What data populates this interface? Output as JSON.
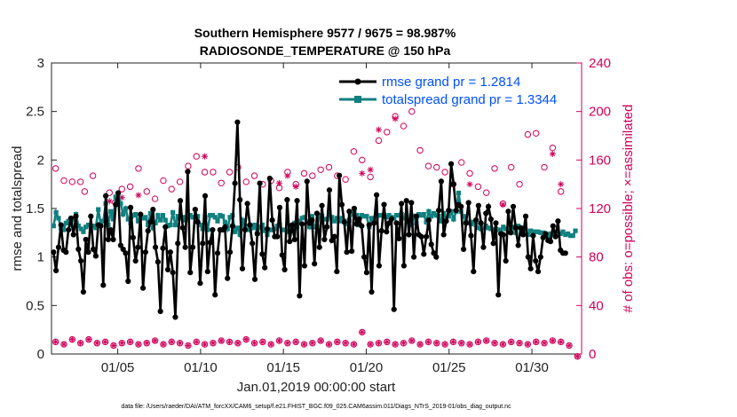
{
  "chart_data": {
    "type": "line",
    "title_line1": "Southern Hemisphere 9577 / 9675 = 98.987%",
    "title_line2": "RADIOSONDE_TEMPERATURE @ 150 hPa",
    "ylabel_left": "rmse and totalspread",
    "ylabel_right": "# of obs: o=possible; ×=assimilated",
    "xlabel": "Jan.01,2019 00:00:00 start",
    "footnote": "data file: /Users/raeder/DAI/ATM_forcXX/CAM6_setup/f.e21.FHIST_BGC.f09_025.CAM6assim.011/Diags_NTrS_2019-01/obs_diag_output.nc",
    "xlim": [
      1,
      33
    ],
    "ylim_left": [
      0,
      3
    ],
    "ylim_right": [
      0,
      240
    ],
    "xticks": [
      5,
      10,
      15,
      20,
      25,
      30
    ],
    "xtick_labels": [
      "01/05",
      "01/10",
      "01/15",
      "01/20",
      "01/25",
      "01/30"
    ],
    "yticks_left": [
      0,
      0.5,
      1,
      1.5,
      2,
      2.5,
      3
    ],
    "ytick_labels_left": [
      "0",
      "0.5",
      "1",
      "1.5",
      "2",
      "2.5",
      "3"
    ],
    "yticks_right": [
      0,
      40,
      80,
      120,
      160,
      200,
      240
    ],
    "ytick_labels_right": [
      "0",
      "40",
      "80",
      "120",
      "160",
      "200",
      "240"
    ],
    "legend": [
      "rmse grand pr = 1.2814",
      "totalspread grand pr = 1.3344"
    ],
    "colors": {
      "rmse": "#000000",
      "spread": "#108080",
      "obs": "#d1005b"
    },
    "rmse": [
      1.05,
      0.86,
      1.1,
      1.33,
      1.07,
      1.05,
      1.28,
      1.4,
      1.23,
      1.42,
      1.08,
      0.96,
      0.64,
      1.18,
      1.05,
      1.42,
      1.08,
      1.01,
      1.33,
      1.32,
      0.71,
      1.63,
      1.18,
      1.28,
      1.18,
      1.54,
      1.66,
      1.12,
      1.08,
      1.04,
      0.75,
      1.51,
      1.2,
      0.96,
      1.1,
      1.44,
      0.68,
      1.05,
      1.27,
      1.36,
      1.49,
      1.1,
      0.95,
      0.44,
      1.09,
      1.31,
      0.87,
      1.05,
      0.84,
      0.38,
      1.14,
      1.58,
      1.3,
      1.1,
      1.88,
      0.84,
      1.1,
      1.49,
      1.36,
      0.73,
      1.14,
      1.63,
      0.85,
      1.15,
      1.28,
      0.61,
      1.04,
      1.28,
      1.28,
      1.31,
      0.78,
      1.05,
      1.32,
      1.76,
      2.39,
      1.59,
      0.88,
      1.28,
      1.55,
      1.33,
      1.14,
      0.77,
      1.24,
      1.76,
      1.03,
      0.89,
      1.29,
      1.81,
      1.38,
      1.21,
      1.21,
      1.51,
      1.02,
      0.87,
      1.59,
      1.16,
      1.33,
      1.18,
      1.58,
      0.6,
      1.34,
      0.91,
      1.78,
      1.35,
      1.38,
      0.93,
      1.45,
      1.1,
      1.53,
      1.18,
      1.31,
      1.69,
      1.17,
      1.21,
      0.85,
      1.84,
      1.54,
      1.36,
      1.05,
      1.47,
      1.06,
      1.5,
      1.34,
      1.39,
      1.32,
      1.0,
      0.84,
      1.33,
      0.64,
      1.35,
      1.64,
      0.91,
      1.27,
      1.54,
      1.26,
      1.35,
      1.39,
      0.46,
      1.35,
      1.19,
      1.55,
      0.91,
      1.58,
      1.23,
      1.56,
      1.0,
      1.42,
      1.23,
      1.21,
      1.03,
      1.21,
      1.38,
      1.13,
      1.04,
      1.0,
      1.48,
      1.78,
      1.23,
      1.37,
      1.48,
      1.96,
      1.75,
      1.48,
      1.54,
      1.52,
      1.08,
      1.35,
      1.56,
      1.22,
      0.85,
      1.38,
      1.53,
      1.35,
      1.1,
      1.45,
      1.52,
      1.39,
      1.14,
      1.35,
      0.61,
      1.24,
      1.23,
      0.96,
      1.47,
      1.25,
      1.52,
      1.3,
      1.12,
      1.3,
      1.23,
      1.42,
      1.0,
      0.88,
      1.22,
      0.96,
      0.85,
      1.0,
      1.2,
      1.24,
      1.17,
      1.16,
      1.32,
      1.21,
      1.37,
      1.07,
      1.04,
      1.04
    ],
    "totalspread": [
      1.32,
      1.46,
      1.4,
      1.3,
      1.28,
      1.35,
      1.37,
      1.33,
      1.39,
      1.44,
      1.32,
      1.29,
      1.26,
      1.31,
      1.33,
      1.32,
      1.32,
      1.3,
      1.49,
      1.34,
      1.37,
      1.55,
      1.33,
      1.47,
      1.39,
      1.62,
      1.65,
      1.55,
      1.44,
      1.5,
      1.39,
      1.35,
      1.43,
      1.44,
      1.37,
      1.42,
      1.4,
      1.41,
      1.33,
      1.45,
      1.3,
      1.35,
      1.43,
      1.38,
      1.43,
      1.38,
      1.32,
      1.33,
      1.46,
      1.33,
      1.42,
      1.4,
      1.41,
      1.38,
      1.4,
      1.43,
      1.41,
      1.41,
      1.42,
      1.33,
      1.29,
      1.41,
      1.28,
      1.43,
      1.43,
      1.41,
      1.37,
      1.43,
      1.42,
      1.36,
      1.29,
      1.41,
      1.43,
      1.26,
      1.3,
      1.23,
      1.38,
      1.32,
      1.28,
      1.29,
      1.3,
      1.33,
      1.24,
      1.31,
      1.33,
      1.27,
      1.23,
      1.28,
      1.28,
      1.29,
      1.32,
      1.33,
      1.28,
      1.28,
      1.26,
      1.27,
      1.29,
      1.35,
      1.31,
      1.37,
      1.4,
      1.41,
      1.37,
      1.31,
      1.42,
      1.31,
      1.31,
      1.43,
      1.42,
      1.39,
      1.39,
      1.44,
      1.41,
      1.37,
      1.4,
      1.37,
      1.4,
      1.37,
      1.34,
      1.38,
      1.44,
      1.46,
      1.43,
      1.33,
      1.43,
      1.42,
      1.42,
      1.31,
      1.4,
      1.39,
      1.42,
      1.43,
      1.43,
      1.43,
      1.41,
      1.43,
      1.41,
      1.4,
      1.43,
      1.43,
      1.44,
      1.4,
      1.43,
      1.36,
      1.33,
      1.42,
      1.35,
      1.44,
      1.43,
      1.44,
      1.36,
      1.47,
      1.42,
      1.45,
      1.43,
      1.42,
      1.37,
      1.45,
      1.39,
      1.42,
      1.47,
      1.39,
      1.47,
      1.66,
      1.47,
      1.42,
      1.36,
      1.35,
      1.34,
      1.36,
      1.33,
      1.3,
      1.29,
      1.3,
      1.32,
      1.3,
      1.29,
      1.28,
      1.29,
      1.28,
      1.28,
      1.31,
      1.29,
      1.26,
      1.28,
      1.31,
      1.25,
      1.32,
      1.3,
      1.29,
      1.27,
      1.23,
      1.27,
      1.26,
      1.26,
      1.26,
      1.25,
      1.25,
      1.23,
      1.21,
      1.24,
      1.24,
      1.23,
      1.24,
      1.24,
      1.26,
      1.23,
      1.24,
      1.22,
      1.22,
      1.27
    ],
    "obs_possible_high": [
      [
        1.25,
        153
      ],
      [
        1.75,
        143
      ],
      [
        2.25,
        142
      ],
      [
        2.75,
        142
      ],
      [
        3.0,
        134
      ],
      [
        3.5,
        147
      ],
      [
        4.5,
        133
      ],
      [
        4.85,
        125
      ],
      [
        5.25,
        136
      ],
      [
        5.75,
        138
      ],
      [
        6.25,
        153
      ],
      [
        6.75,
        134
      ],
      [
        7.25,
        128
      ],
      [
        7.75,
        143
      ],
      [
        8.25,
        136
      ],
      [
        8.75,
        142
      ],
      [
        9.25,
        155
      ],
      [
        9.75,
        163
      ],
      [
        10.25,
        150
      ],
      [
        10.75,
        150
      ],
      [
        11.25,
        141
      ],
      [
        11.75,
        150
      ],
      [
        12.25,
        154
      ],
      [
        12.75,
        142
      ],
      [
        13.25,
        147
      ],
      [
        13.75,
        140
      ],
      [
        14.25,
        143
      ],
      [
        14.75,
        137
      ],
      [
        15.25,
        150
      ],
      [
        15.75,
        140
      ],
      [
        16.25,
        149
      ],
      [
        16.75,
        147
      ],
      [
        17.25,
        152
      ],
      [
        17.75,
        154
      ],
      [
        18.25,
        147
      ],
      [
        18.75,
        144
      ],
      [
        19.25,
        167
      ],
      [
        19.75,
        160
      ],
      [
        20.25,
        146
      ],
      [
        20.75,
        176
      ],
      [
        21.25,
        183
      ],
      [
        21.75,
        196
      ],
      [
        22.25,
        188
      ],
      [
        22.75,
        200
      ],
      [
        23.25,
        168
      ],
      [
        23.75,
        155
      ],
      [
        24.25,
        154
      ],
      [
        24.75,
        150
      ],
      [
        25.25,
        140
      ],
      [
        25.75,
        158
      ],
      [
        26.25,
        149
      ],
      [
        26.75,
        138
      ],
      [
        27.25,
        133
      ],
      [
        27.75,
        153
      ],
      [
        28.25,
        124
      ],
      [
        28.75,
        154
      ],
      [
        29.25,
        140
      ],
      [
        29.75,
        181
      ],
      [
        30.25,
        182
      ],
      [
        30.75,
        154
      ],
      [
        31.25,
        170
      ],
      [
        31.75,
        134
      ]
    ],
    "obs_assimilated_high": [
      [
        4.5,
        126
      ],
      [
        5.25,
        129
      ],
      [
        6.25,
        131
      ],
      [
        10.25,
        163
      ],
      [
        14.75,
        141
      ],
      [
        15.25,
        147
      ],
      [
        15.75,
        138
      ],
      [
        19.75,
        149
      ],
      [
        20.25,
        152
      ],
      [
        20.75,
        185
      ],
      [
        21.75,
        194
      ],
      [
        26.25,
        140
      ],
      [
        28.25,
        123
      ],
      [
        31.25,
        165
      ],
      [
        31.75,
        140
      ]
    ],
    "obs_low": [
      [
        1.25,
        10
      ],
      [
        1.75,
        8
      ],
      [
        2.25,
        12
      ],
      [
        2.75,
        9
      ],
      [
        3.25,
        12
      ],
      [
        3.75,
        9
      ],
      [
        4.25,
        10
      ],
      [
        4.75,
        7
      ],
      [
        5.25,
        9
      ],
      [
        5.75,
        10
      ],
      [
        6.25,
        8
      ],
      [
        6.75,
        9
      ],
      [
        7.25,
        11
      ],
      [
        7.75,
        8
      ],
      [
        8.25,
        10
      ],
      [
        8.75,
        9
      ],
      [
        9.25,
        7
      ],
      [
        9.75,
        10
      ],
      [
        10.25,
        8
      ],
      [
        10.75,
        9
      ],
      [
        11.25,
        11
      ],
      [
        11.75,
        10
      ],
      [
        12.25,
        9
      ],
      [
        12.75,
        12
      ],
      [
        13.25,
        9
      ],
      [
        13.75,
        10
      ],
      [
        14.25,
        8
      ],
      [
        14.75,
        11
      ],
      [
        15.25,
        9
      ],
      [
        15.75,
        10
      ],
      [
        16.25,
        8
      ],
      [
        16.75,
        9
      ],
      [
        17.25,
        11
      ],
      [
        17.75,
        8
      ],
      [
        18.25,
        10
      ],
      [
        18.75,
        9
      ],
      [
        19.25,
        8
      ],
      [
        19.75,
        18
      ],
      [
        20.25,
        8
      ],
      [
        20.75,
        9
      ],
      [
        21.25,
        10
      ],
      [
        21.75,
        8
      ],
      [
        22.25,
        9
      ],
      [
        22.75,
        11
      ],
      [
        23.25,
        8
      ],
      [
        23.75,
        10
      ],
      [
        24.25,
        9
      ],
      [
        24.75,
        8
      ],
      [
        25.25,
        10
      ],
      [
        25.75,
        9
      ],
      [
        26.25,
        8
      ],
      [
        26.75,
        10
      ],
      [
        27.25,
        11
      ],
      [
        27.75,
        9
      ],
      [
        28.25,
        8
      ],
      [
        28.75,
        10
      ],
      [
        29.25,
        9
      ],
      [
        29.75,
        8
      ],
      [
        30.25,
        10
      ],
      [
        30.75,
        9
      ],
      [
        31.25,
        11
      ],
      [
        31.75,
        10
      ],
      [
        32.25,
        7
      ],
      [
        32.75,
        -2
      ]
    ]
  }
}
